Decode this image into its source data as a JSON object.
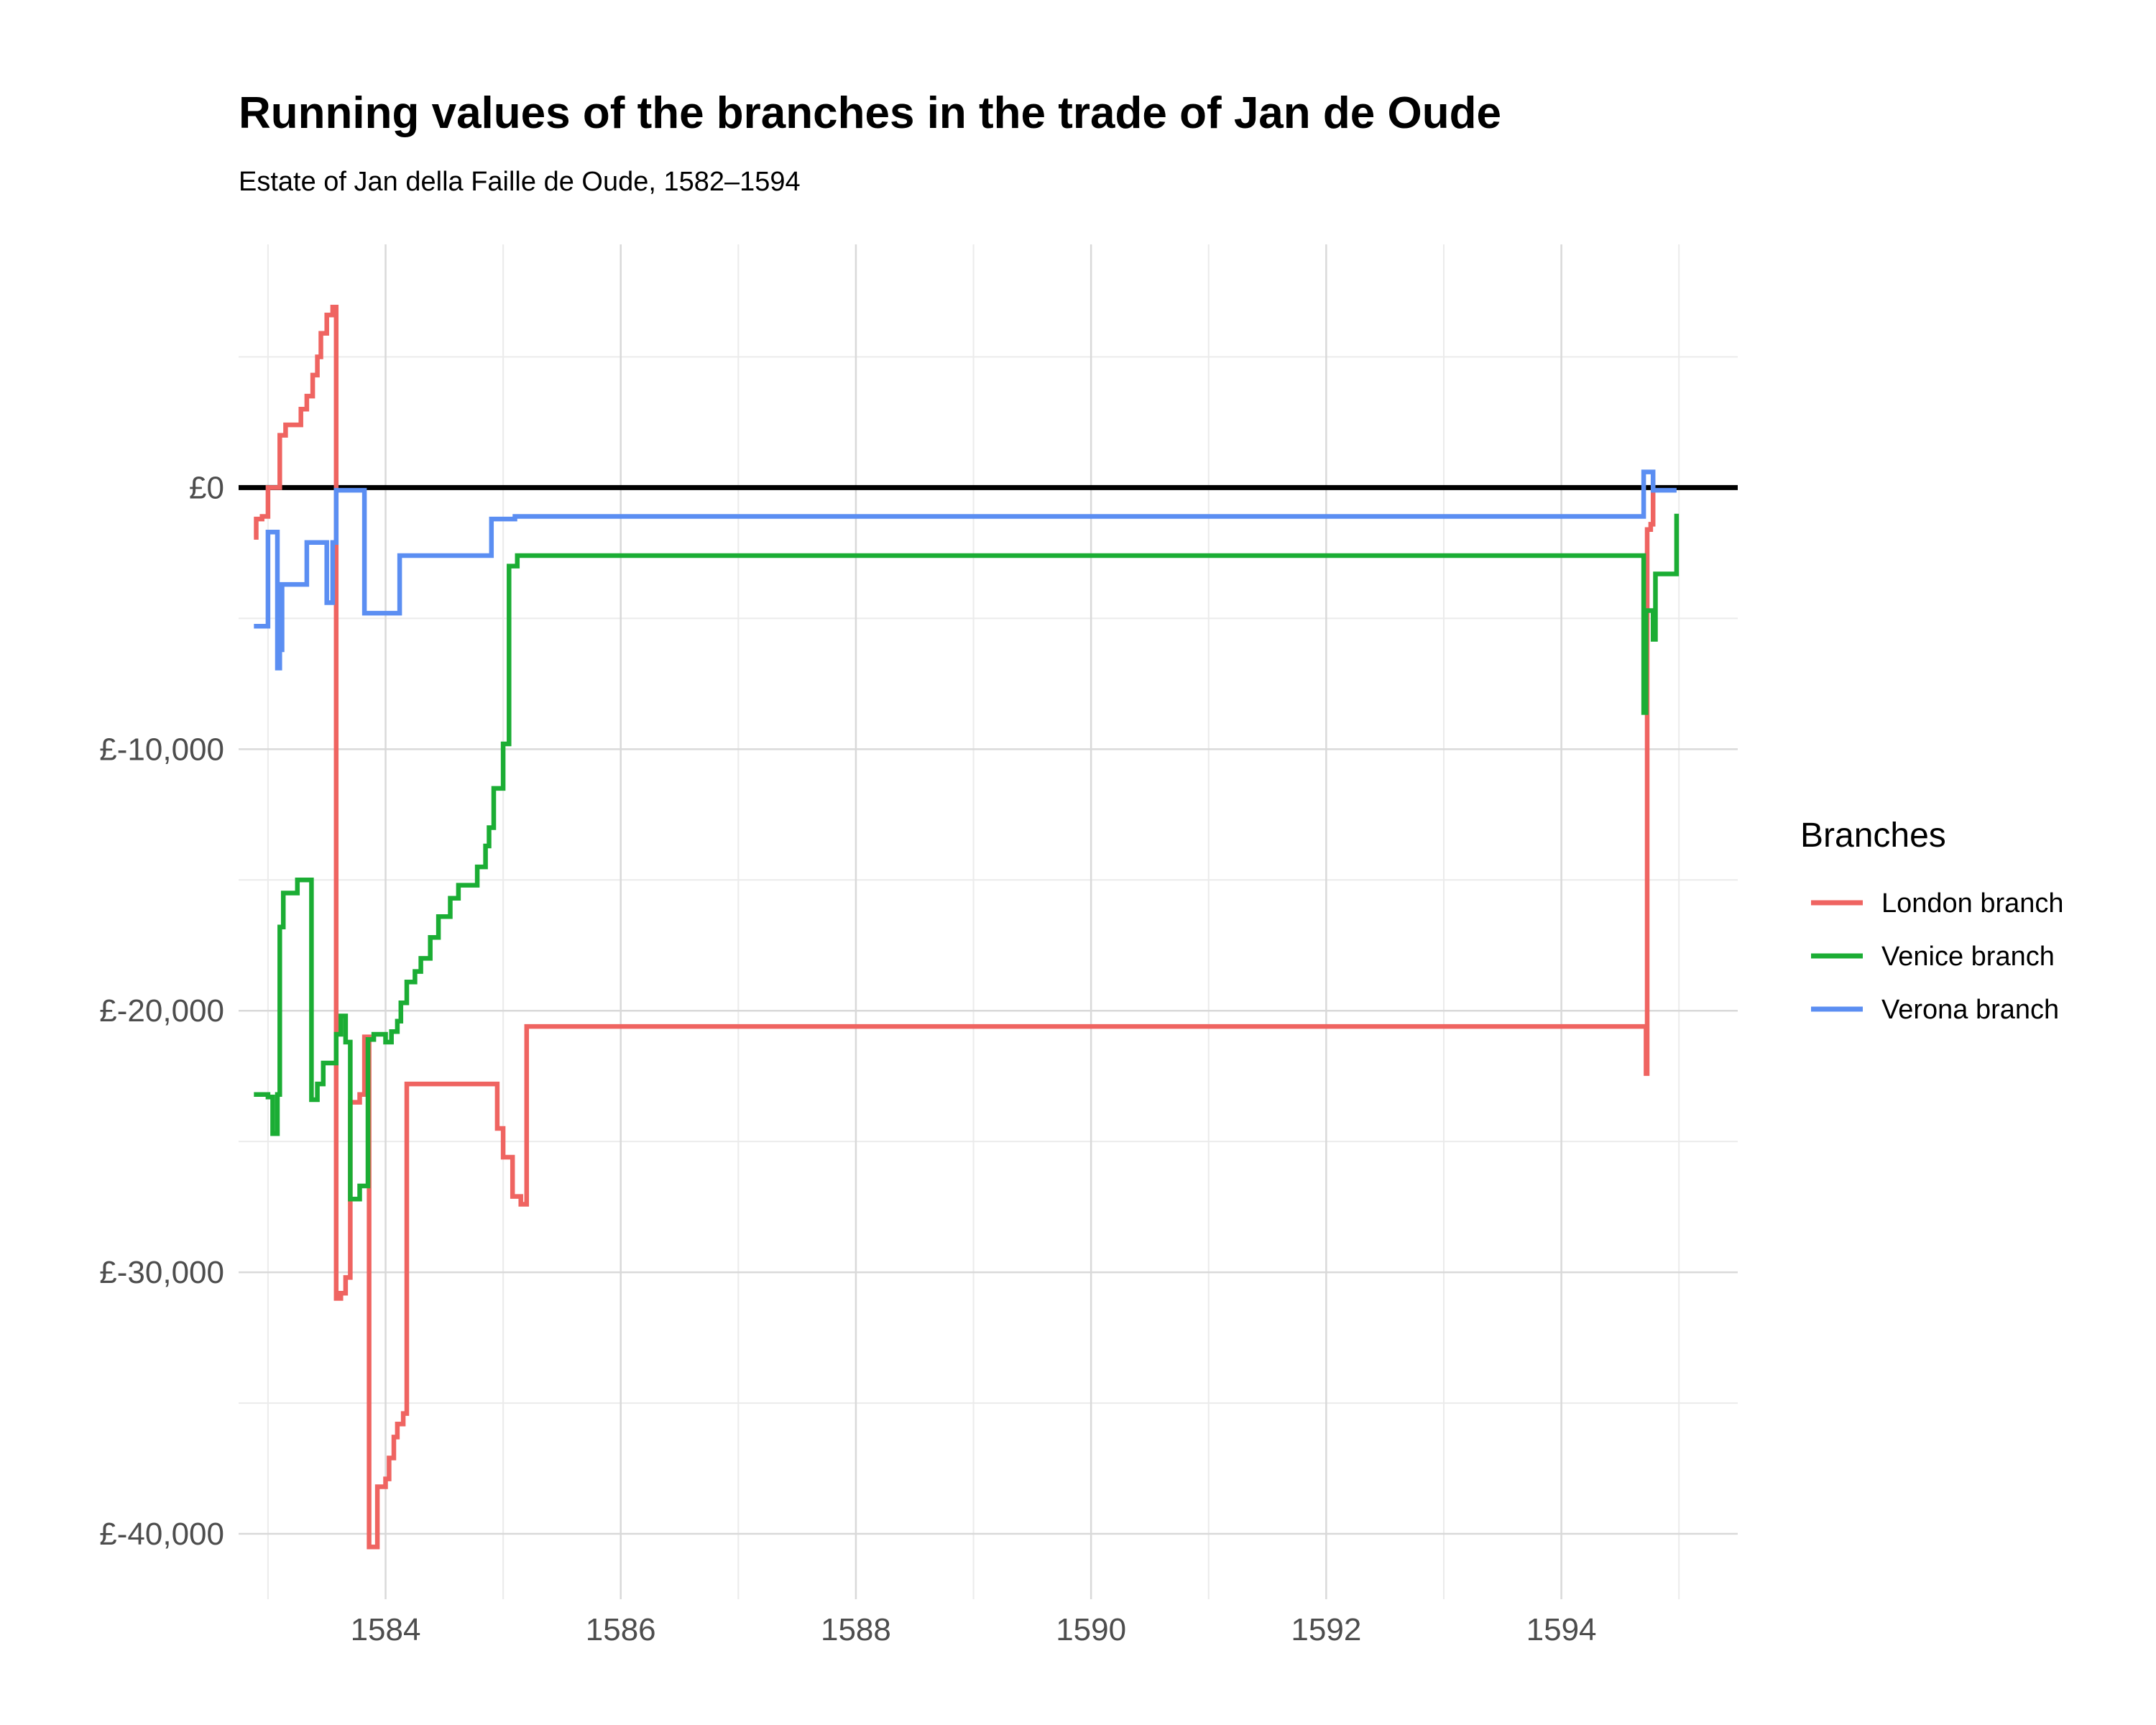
{
  "chart_data": {
    "type": "line",
    "title": "Running values of the branches in the trade of Jan de Oude",
    "subtitle": "Estate of Jan della Faille de Oude, 1582–1594",
    "xlabel": "",
    "ylabel": "",
    "xlim": [
      1582.75,
      1595.5
    ],
    "ylim": [
      -42500,
      9300
    ],
    "x_ticks": [
      1584,
      1586,
      1588,
      1590,
      1592,
      1594
    ],
    "x_tick_labels": [
      "1584",
      "1586",
      "1588",
      "1590",
      "1592",
      "1594"
    ],
    "y_ticks": [
      0,
      -10000,
      -20000,
      -30000,
      -40000
    ],
    "y_tick_labels": [
      "£0",
      "£-10,000",
      "£-20,000",
      "£-30,000",
      "£-40,000"
    ],
    "grid": true,
    "zero_line": true,
    "step": true,
    "legend": {
      "title": "Branches",
      "position": "right"
    },
    "series": [
      {
        "name": "London branch",
        "color": "#ef6461",
        "points": [
          [
            1582.88,
            -1900
          ],
          [
            1582.9,
            -1200
          ],
          [
            1582.95,
            -1100
          ],
          [
            1583.0,
            0
          ],
          [
            1583.1,
            2000
          ],
          [
            1583.15,
            2400
          ],
          [
            1583.28,
            3000
          ],
          [
            1583.33,
            3500
          ],
          [
            1583.38,
            4300
          ],
          [
            1583.42,
            5000
          ],
          [
            1583.45,
            5900
          ],
          [
            1583.5,
            6600
          ],
          [
            1583.55,
            6900
          ],
          [
            1583.58,
            -31000
          ],
          [
            1583.62,
            -30800
          ],
          [
            1583.66,
            -30200
          ],
          [
            1583.7,
            -23500
          ],
          [
            1583.78,
            -23200
          ],
          [
            1583.82,
            -21000
          ],
          [
            1583.86,
            -40500
          ],
          [
            1583.93,
            -38200
          ],
          [
            1584.0,
            -37900
          ],
          [
            1584.03,
            -37100
          ],
          [
            1584.07,
            -36300
          ],
          [
            1584.1,
            -35800
          ],
          [
            1584.15,
            -35400
          ],
          [
            1584.18,
            -22800
          ],
          [
            1584.48,
            -22800
          ],
          [
            1584.9,
            -22800
          ],
          [
            1584.95,
            -24500
          ],
          [
            1585.0,
            -25600
          ],
          [
            1585.08,
            -27100
          ],
          [
            1585.15,
            -27400
          ],
          [
            1585.2,
            -20600
          ],
          [
            1594.7,
            -20600
          ],
          [
            1594.72,
            -22400
          ],
          [
            1594.73,
            -1600
          ],
          [
            1594.76,
            -1400
          ],
          [
            1594.78,
            300
          ]
        ]
      },
      {
        "name": "Venice branch",
        "color": "#1bad34",
        "points": [
          [
            1582.88,
            -23200
          ],
          [
            1583.0,
            -23300
          ],
          [
            1583.04,
            -24700
          ],
          [
            1583.08,
            -23200
          ],
          [
            1583.1,
            -16800
          ],
          [
            1583.13,
            -15500
          ],
          [
            1583.25,
            -15000
          ],
          [
            1583.37,
            -23400
          ],
          [
            1583.42,
            -22800
          ],
          [
            1583.47,
            -22000
          ],
          [
            1583.58,
            -20900
          ],
          [
            1583.62,
            -20200
          ],
          [
            1583.66,
            -21200
          ],
          [
            1583.7,
            -27200
          ],
          [
            1583.78,
            -26700
          ],
          [
            1583.85,
            -21100
          ],
          [
            1583.9,
            -20900
          ],
          [
            1584.0,
            -21200
          ],
          [
            1584.05,
            -20800
          ],
          [
            1584.1,
            -20400
          ],
          [
            1584.13,
            -19700
          ],
          [
            1584.18,
            -18900
          ],
          [
            1584.25,
            -18500
          ],
          [
            1584.3,
            -18000
          ],
          [
            1584.38,
            -17200
          ],
          [
            1584.45,
            -16400
          ],
          [
            1584.55,
            -15700
          ],
          [
            1584.62,
            -15200
          ],
          [
            1584.78,
            -14500
          ],
          [
            1584.85,
            -13700
          ],
          [
            1584.88,
            -13000
          ],
          [
            1584.92,
            -11500
          ],
          [
            1585.0,
            -9800
          ],
          [
            1585.05,
            -3000
          ],
          [
            1585.12,
            -2600
          ],
          [
            1594.68,
            -2600
          ],
          [
            1594.7,
            -8600
          ],
          [
            1594.72,
            -4700
          ],
          [
            1594.78,
            -5800
          ],
          [
            1594.8,
            -3300
          ],
          [
            1594.98,
            -1000
          ]
        ]
      },
      {
        "name": "Verona branch",
        "color": "#5b8ef2",
        "points": [
          [
            1582.88,
            -5300
          ],
          [
            1583.0,
            -1700
          ],
          [
            1583.08,
            -6900
          ],
          [
            1583.1,
            -6200
          ],
          [
            1583.12,
            -3700
          ],
          [
            1583.33,
            -2100
          ],
          [
            1583.5,
            -4400
          ],
          [
            1583.52,
            -4400
          ],
          [
            1583.55,
            -2100
          ],
          [
            1583.58,
            -100
          ],
          [
            1583.8,
            -100
          ],
          [
            1583.82,
            -4800
          ],
          [
            1584.1,
            -4800
          ],
          [
            1584.12,
            -2600
          ],
          [
            1584.88,
            -2600
          ],
          [
            1584.9,
            -1200
          ],
          [
            1585.1,
            -1100
          ],
          [
            1594.68,
            -1100
          ],
          [
            1594.7,
            600
          ],
          [
            1594.78,
            -100
          ],
          [
            1594.98,
            -100
          ]
        ]
      }
    ]
  }
}
